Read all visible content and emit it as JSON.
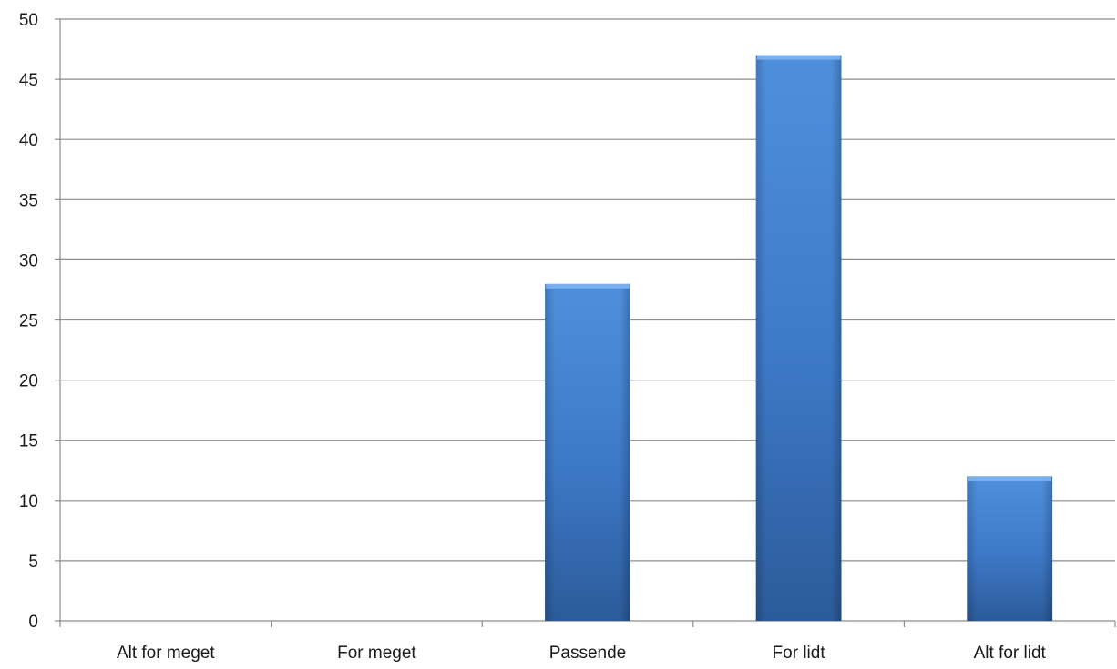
{
  "chart_data": {
    "type": "bar",
    "categories": [
      "Alt for meget",
      "For meget",
      "Passende",
      "For lidt",
      "Alt for lidt"
    ],
    "values": [
      0,
      0,
      28,
      47,
      12
    ],
    "title": "",
    "xlabel": "",
    "ylabel": "",
    "ylim": [
      0,
      50
    ],
    "yticks": [
      0,
      5,
      10,
      15,
      20,
      25,
      30,
      35,
      40,
      45,
      50
    ],
    "grid": true,
    "legend": "none",
    "colors": {
      "bar_top": "#4f90dd",
      "bar_mid": "#3d78c6",
      "bar_bottom": "#2c5b9a",
      "bar_cap": "#7fb2ee",
      "gridline": "#8c8c8c"
    }
  }
}
